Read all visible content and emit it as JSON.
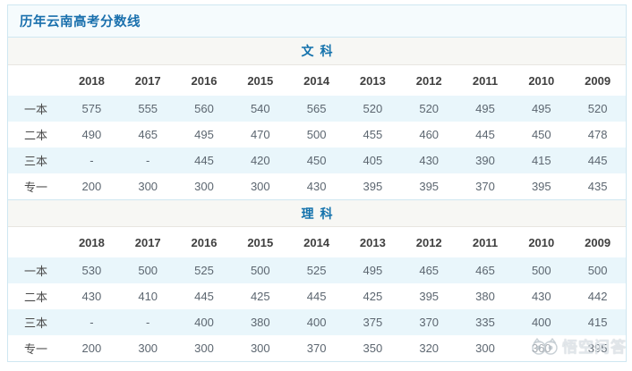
{
  "page_title": "历年云南高考分数线",
  "colors": {
    "accent_blue": "#1472ac",
    "panel_border": "#cfe7f1",
    "row_stripe": "#e9f6fb",
    "section_header_bg": "#f7f7f4",
    "title_bar_bg": "#f5fbfd"
  },
  "tables": [
    {
      "section_label": "文科",
      "years": [
        "2018",
        "2017",
        "2016",
        "2015",
        "2014",
        "2013",
        "2012",
        "2011",
        "2010",
        "2009"
      ],
      "rows": [
        {
          "label": "一本",
          "values": [
            575,
            555,
            560,
            540,
            565,
            520,
            520,
            495,
            495,
            520
          ]
        },
        {
          "label": "二本",
          "values": [
            490,
            465,
            495,
            470,
            500,
            455,
            460,
            445,
            450,
            478
          ]
        },
        {
          "label": "三本",
          "values": [
            "-",
            "-",
            445,
            420,
            450,
            405,
            430,
            390,
            415,
            445
          ]
        },
        {
          "label": "专一",
          "values": [
            200,
            300,
            300,
            300,
            430,
            395,
            395,
            370,
            395,
            435
          ]
        }
      ]
    },
    {
      "section_label": "理科",
      "years": [
        "2018",
        "2017",
        "2016",
        "2015",
        "2014",
        "2013",
        "2012",
        "2011",
        "2010",
        "2009"
      ],
      "rows": [
        {
          "label": "一本",
          "values": [
            530,
            500,
            525,
            500,
            525,
            495,
            465,
            465,
            500,
            500
          ]
        },
        {
          "label": "二本",
          "values": [
            430,
            410,
            445,
            425,
            445,
            425,
            395,
            380,
            430,
            442
          ]
        },
        {
          "label": "三本",
          "values": [
            "-",
            "-",
            400,
            380,
            400,
            375,
            370,
            335,
            400,
            415
          ]
        },
        {
          "label": "专一",
          "values": [
            200,
            300,
            300,
            300,
            370,
            350,
            320,
            300,
            360,
            395
          ]
        }
      ]
    }
  ],
  "watermark": {
    "text": "悟空问答",
    "logo": "wukong-logo"
  }
}
